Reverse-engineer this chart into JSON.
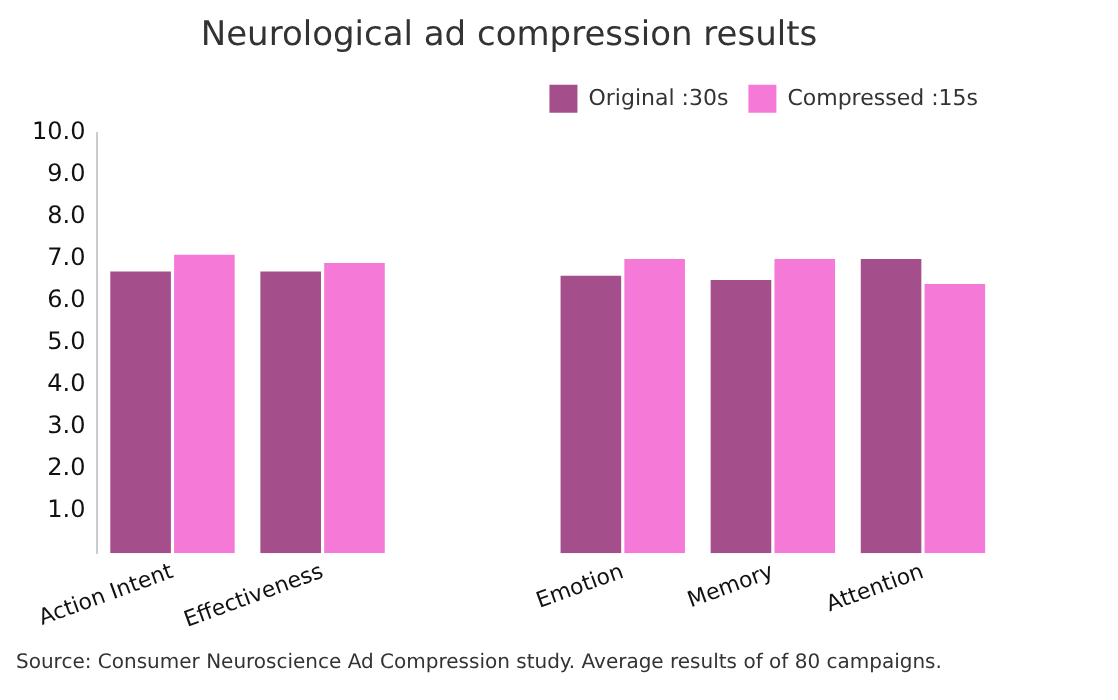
{
  "chart_data": {
    "type": "bar",
    "title": "Neurological ad compression results",
    "categories": [
      "Action Intent",
      "Effectiveness",
      null,
      "Emotion",
      "Memory",
      "Attention"
    ],
    "series": [
      {
        "name": "Original :30s",
        "color": "#a54e8c",
        "values": [
          6.7,
          6.7,
          null,
          6.6,
          6.5,
          7.0
        ]
      },
      {
        "name": "Compressed :15s",
        "color": "#f57ad8",
        "values": [
          7.1,
          6.9,
          null,
          7.0,
          7.0,
          6.4
        ]
      }
    ],
    "ylim": [
      0,
      10
    ],
    "yticks": [
      {
        "value": 1,
        "label": "1.0"
      },
      {
        "value": 2,
        "label": "2.0"
      },
      {
        "value": 3,
        "label": "3.0"
      },
      {
        "value": 4,
        "label": "4.0"
      },
      {
        "value": 5,
        "label": "5.0"
      },
      {
        "value": 6,
        "label": "6.0"
      },
      {
        "value": 7,
        "label": "7.0"
      },
      {
        "value": 8,
        "label": "8.0"
      },
      {
        "value": 9,
        "label": "9.0"
      },
      {
        "value": 10,
        "label": "10.0"
      }
    ],
    "grid": false,
    "legend": "top right",
    "annotations": [
      "Source: Consumer Neuroscience Ad Compression study. Average results of of 80 campaigns."
    ]
  }
}
